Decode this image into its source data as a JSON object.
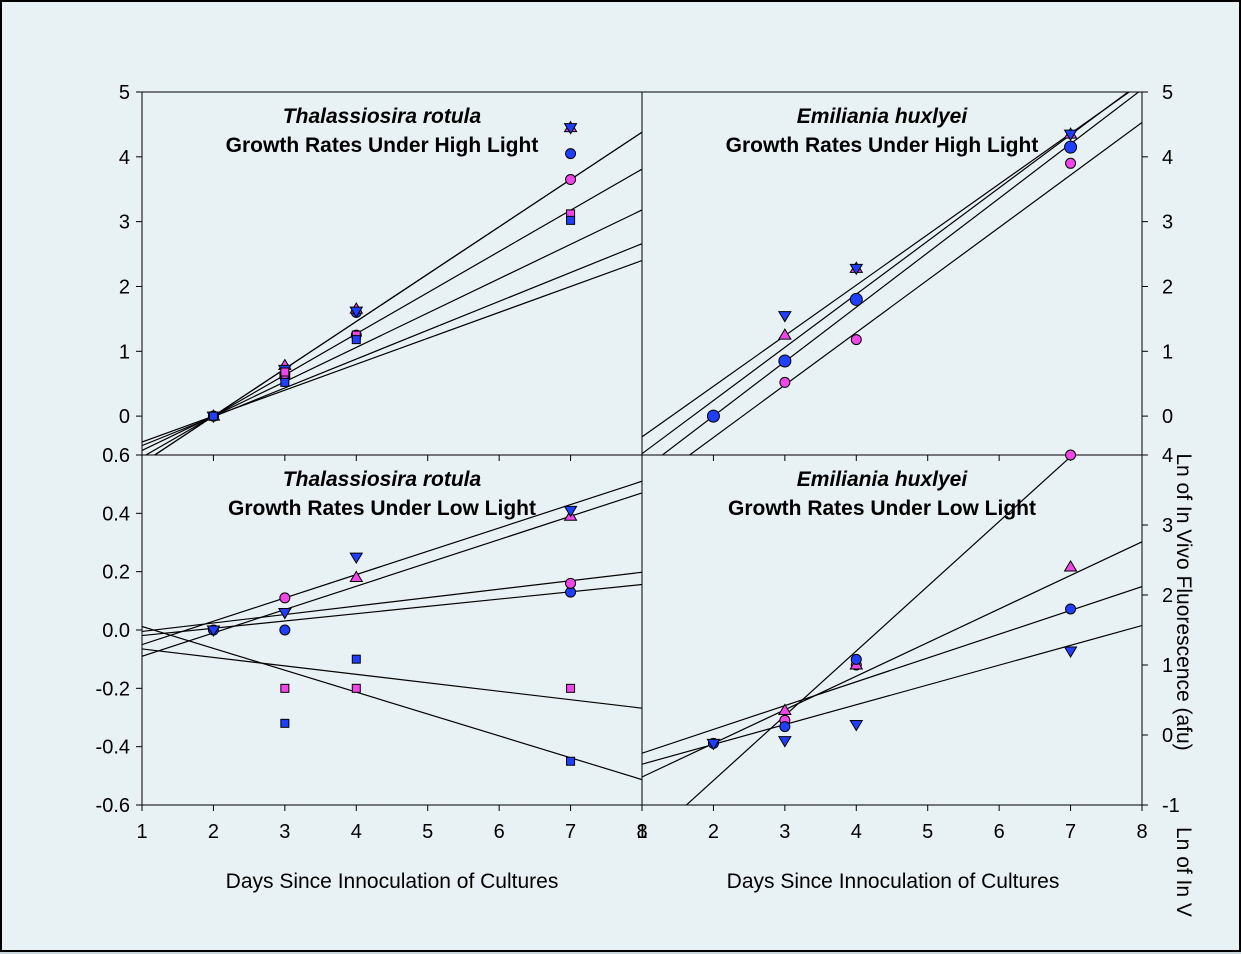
{
  "figure": {
    "xlabel_left": "Days Since Innoculation of Cultures",
    "xlabel_right": "Days Since Innoculation of Cultures",
    "ylabel_right_a": "Ln of In Vivo Fluorescence (afu)",
    "ylabel_right_b": "Ln of In V"
  },
  "colors": {
    "pink": "#f046e8",
    "blue": "#1f3fff",
    "background": "#e8f1f3",
    "line": "#000000"
  },
  "marker_shapes": [
    "circle",
    "triangle-up",
    "triangle-down",
    "square"
  ],
  "chart_data": [
    {
      "id": "tl-high",
      "type": "scatter",
      "title_species": "Thalassiosira rotula",
      "title": "Growth Rates Under High Light",
      "x": [
        2,
        3,
        4,
        7
      ],
      "xlim": [
        1,
        8
      ],
      "xticks": [
        1,
        2,
        3,
        4,
        5,
        6,
        7,
        8
      ],
      "ylim": [
        -0.6,
        5
      ],
      "yticks": [
        0,
        1,
        2,
        3,
        4,
        5
      ],
      "ytick_labels": [
        "0",
        "1",
        "2",
        "3",
        "4",
        "5"
      ],
      "axis_side": "left",
      "series": [
        {
          "marker": "circle",
          "color": "#1f3fff",
          "x": [
            2,
            3,
            4,
            7
          ],
          "y": [
            0,
            0.6,
            1.6,
            4.05
          ],
          "line": [
            -1.27,
            0.635
          ]
        },
        {
          "marker": "circle",
          "color": "#f046e8",
          "x": [
            2,
            3,
            4,
            7
          ],
          "y": [
            0,
            0.65,
            1.25,
            3.65
          ],
          "line": [
            -1.06,
            0.53
          ]
        },
        {
          "marker": "triangle-up",
          "color": "#f046e8",
          "x": [
            2,
            3,
            4,
            7
          ],
          "y": [
            0,
            0.78,
            1.65,
            4.45
          ],
          "line": [
            -1.46,
            0.73
          ]
        },
        {
          "marker": "triangle-down",
          "color": "#1f3fff",
          "x": [
            2,
            3,
            4,
            7
          ],
          "y": [
            0,
            0.72,
            1.62,
            4.45
          ],
          "line": [
            -1.46,
            0.73
          ]
        },
        {
          "marker": "square",
          "color": "#f046e8",
          "x": [
            2,
            3,
            4,
            7
          ],
          "y": [
            0,
            0.68,
            1.25,
            3.12
          ],
          "line": [
            -0.8,
            0.4
          ]
        },
        {
          "marker": "square",
          "color": "#1f3fff",
          "x": [
            2,
            3,
            4,
            7
          ],
          "y": [
            0,
            0.52,
            1.18,
            3.02
          ],
          "line": [
            -0.9,
            0.445
          ]
        }
      ]
    },
    {
      "id": "tr-high",
      "type": "scatter",
      "title_species": "Emiliania huxlyei",
      "title": "Growth Rates Under High Light",
      "x": [
        2,
        3,
        4,
        7
      ],
      "xlim": [
        1,
        8
      ],
      "xticks": [
        1,
        2,
        3,
        4,
        5,
        6,
        7,
        8
      ],
      "ylim": [
        -0.6,
        5
      ],
      "yticks": [
        0,
        1,
        2,
        3,
        4,
        5
      ],
      "ytick_labels": [
        "0",
        "1",
        "2",
        "3",
        "4",
        "5"
      ],
      "axis_side": "right",
      "series": [
        {
          "marker": "circle-large",
          "color": "#1f3fff",
          "x": [
            2,
            3,
            4,
            7
          ],
          "y": [
            0,
            0.85,
            1.8,
            4.15
          ],
          "line": [
            -1.68,
            0.84
          ]
        },
        {
          "marker": "circle",
          "color": "#f046e8",
          "x": [
            3,
            4,
            7
          ],
          "y": [
            0.52,
            1.18,
            3.9
          ],
          "line": [
            -1.95,
            0.81
          ]
        },
        {
          "marker": "triangle-up",
          "color": "#f046e8",
          "x": [
            3,
            4,
            7
          ],
          "y": [
            1.25,
            2.28,
            4.35
          ],
          "line": [
            -1.1,
            0.78
          ]
        },
        {
          "marker": "triangle-down",
          "color": "#1f3fff",
          "x": [
            3,
            4,
            7
          ],
          "y": [
            1.55,
            2.28,
            4.35
          ],
          "line": [
            -1.4,
            0.82
          ]
        }
      ]
    },
    {
      "id": "bl-low",
      "type": "scatter",
      "title_species": "Thalassiosira rotula",
      "title": "Growth Rates Under Low Light",
      "x": [
        2,
        3,
        4,
        7
      ],
      "xlim": [
        1,
        8
      ],
      "xticks": [
        1,
        2,
        3,
        4,
        5,
        6,
        7,
        8
      ],
      "ylim": [
        -0.6,
        0.6
      ],
      "yticks": [
        -0.6,
        -0.4,
        -0.2,
        0.0,
        0.2,
        0.4,
        0.6
      ],
      "ytick_labels": [
        "-0.6",
        "-0.4",
        "-0.2",
        "0.0",
        "0.2",
        "0.4",
        "0.6"
      ],
      "axis_side": "left",
      "series": [
        {
          "marker": "circle",
          "color": "#1f3fff",
          "x": [
            2,
            3,
            7
          ],
          "y": [
            0.0,
            0.0,
            0.13
          ],
          "line": [
            -0.044,
            0.025
          ]
        },
        {
          "marker": "circle",
          "color": "#f046e8",
          "x": [
            3,
            7
          ],
          "y": [
            0.11,
            0.16
          ],
          "line": [
            -0.034,
            0.029
          ]
        },
        {
          "marker": "triangle-up",
          "color": "#f046e8",
          "x": [
            4,
            7
          ],
          "y": [
            0.18,
            0.39
          ],
          "line": [
            -0.17,
            0.08
          ]
        },
        {
          "marker": "triangle-down",
          "color": "#1f3fff",
          "x": [
            2,
            3,
            4,
            7
          ],
          "y": [
            0.0,
            0.06,
            0.25,
            0.41
          ],
          "line": [
            -0.13,
            0.08
          ]
        },
        {
          "marker": "square",
          "color": "#f046e8",
          "x": [
            3,
            4,
            7
          ],
          "y": [
            -0.2,
            -0.2,
            -0.2
          ],
          "line": [
            -0.036,
            -0.029
          ]
        },
        {
          "marker": "square",
          "color": "#1f3fff",
          "x": [
            3,
            4,
            7
          ],
          "y": [
            -0.32,
            -0.1,
            -0.45
          ],
          "line": [
            0.087,
            -0.075
          ]
        }
      ]
    },
    {
      "id": "br-low",
      "type": "scatter",
      "title_species": "Emiliania huxlyei",
      "title": "Growth Rates Under Low Light",
      "x": [
        2,
        3,
        4,
        7
      ],
      "xlim": [
        1,
        8
      ],
      "xticks": [
        1,
        2,
        3,
        4,
        5,
        6,
        7,
        8
      ],
      "ylim": [
        -1,
        4
      ],
      "yticks": [
        -1,
        0,
        1,
        2,
        3,
        4
      ],
      "ytick_labels": [
        "-1",
        "0",
        "1",
        "2",
        "3",
        "4"
      ],
      "axis_side": "right",
      "series": [
        {
          "marker": "circle",
          "color": "#f046e8",
          "x": [
            3,
            4,
            7
          ],
          "y": [
            0.21,
            1.0,
            4.0
          ],
          "line": [
            -2.5,
            0.925
          ]
        },
        {
          "marker": "triangle-up",
          "color": "#f046e8",
          "x": [
            3,
            4,
            7
          ],
          "y": [
            0.35,
            1.0,
            2.4
          ],
          "line": [
            -1.08,
            0.48
          ]
        },
        {
          "marker": "circle",
          "color": "#1f3fff",
          "x": [
            2,
            3,
            4,
            7
          ],
          "y": [
            -0.12,
            0.12,
            1.08,
            1.8
          ],
          "line": [
            -0.6,
            0.34
          ]
        },
        {
          "marker": "triangle-down",
          "color": "#1f3fff",
          "x": [
            2,
            3,
            4,
            7
          ],
          "y": [
            -0.12,
            -0.08,
            0.15,
            1.2
          ],
          "line": [
            -0.7,
            0.283
          ]
        }
      ]
    }
  ]
}
